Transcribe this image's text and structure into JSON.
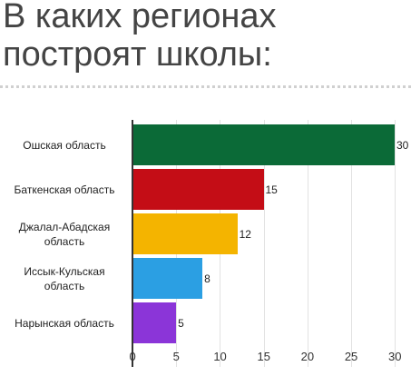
{
  "chart_data": {
    "type": "bar",
    "orientation": "horizontal",
    "title": "В каких регионах построят школы:",
    "categories": [
      "Ошская область",
      "Баткенская область",
      "Джалал-Абадская область",
      "Иссык-Кульская область",
      "Нарынская область"
    ],
    "values": [
      30,
      15,
      12,
      8,
      5
    ],
    "colors": [
      "#0b6a37",
      "#c40d16",
      "#f4b400",
      "#2b9fe3",
      "#8b35d8"
    ],
    "xlim": [
      0,
      30
    ],
    "xticks": [
      0,
      5,
      10,
      15,
      20,
      25,
      30
    ],
    "grid": true
  }
}
